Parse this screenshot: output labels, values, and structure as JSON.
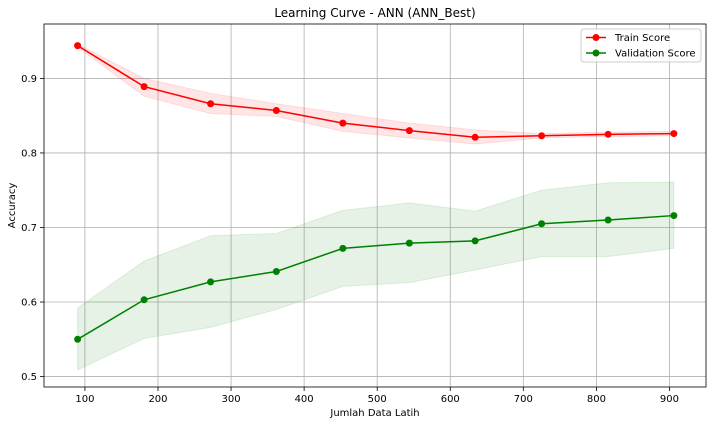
{
  "chart_data": {
    "type": "line",
    "title": "Learning Curve - ANN (ANN_Best)",
    "xlabel": "Jumlah Data Latih",
    "ylabel": "Accuracy",
    "xlim": [
      44,
      950
    ],
    "ylim": [
      0.486,
      0.973
    ],
    "xticks": [
      100,
      200,
      300,
      400,
      500,
      600,
      700,
      800,
      900
    ],
    "yticks": [
      0.5,
      0.6,
      0.7,
      0.8,
      0.9
    ],
    "ytick_labels": [
      "0.5",
      "0.6",
      "0.7",
      "0.8",
      "0.9"
    ],
    "grid": true,
    "legend_position": "top-right",
    "x": [
      90,
      181,
      272,
      362,
      453,
      544,
      634,
      725,
      816,
      906
    ],
    "series": [
      {
        "name": "Train Score",
        "color": "#ff0000",
        "band_color": "#ff0000",
        "values": [
          0.944,
          0.889,
          0.866,
          0.857,
          0.84,
          0.83,
          0.821,
          0.823,
          0.825,
          0.826
        ],
        "band_upper": [
          0.946,
          0.9,
          0.88,
          0.866,
          0.853,
          0.84,
          0.831,
          0.826,
          0.828,
          0.829
        ],
        "band_lower": [
          0.942,
          0.876,
          0.853,
          0.849,
          0.829,
          0.82,
          0.812,
          0.82,
          0.822,
          0.823
        ]
      },
      {
        "name": "Validation Score",
        "color": "#008000",
        "band_color": "#008000",
        "values": [
          0.55,
          0.603,
          0.627,
          0.641,
          0.672,
          0.679,
          0.682,
          0.705,
          0.71,
          0.716
        ],
        "band_upper": [
          0.592,
          0.655,
          0.689,
          0.692,
          0.723,
          0.733,
          0.722,
          0.75,
          0.76,
          0.761
        ],
        "band_lower": [
          0.509,
          0.551,
          0.566,
          0.59,
          0.621,
          0.626,
          0.643,
          0.661,
          0.661,
          0.672
        ]
      }
    ]
  }
}
